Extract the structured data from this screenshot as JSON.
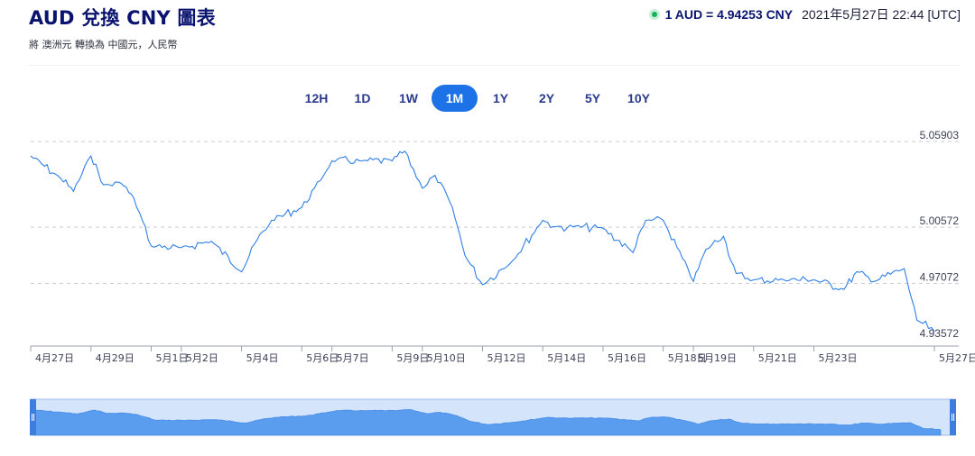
{
  "header": {
    "title": "AUD 兌換 CNY 圖表",
    "subtitle": "將 澳洲元 轉換為 中國元，人民幣",
    "rate": "1 AUD = 4.94253 CNY",
    "timestamp": "2021年5月27日 22:44 [UTC]"
  },
  "range_tabs": [
    {
      "label": "12H",
      "active": false
    },
    {
      "label": "1D",
      "active": false
    },
    {
      "label": "1W",
      "active": false
    },
    {
      "label": "1M",
      "active": true
    },
    {
      "label": "1Y",
      "active": false
    },
    {
      "label": "2Y",
      "active": false
    },
    {
      "label": "5Y",
      "active": false
    },
    {
      "label": "10Y",
      "active": false
    }
  ],
  "colors": {
    "line": "#2f7fe6",
    "navigator_fill": "#5a9cee",
    "navigator_bg": "#d4e4fa",
    "active_tab": "#1c72e6",
    "title": "#0a146e"
  },
  "chart_data": {
    "type": "line",
    "title": "AUD 兌換 CNY 圖表",
    "xlabel": "",
    "ylabel": "",
    "x_tick_labels": [
      "4月27日",
      "4月29日",
      "5月1日",
      "5月2日",
      "5月4日",
      "5月6日",
      "5月7日",
      "5月9日",
      "5月10日",
      "5月12日",
      "5月14日",
      "5月16日",
      "5月18日",
      "5月19日",
      "5月21日",
      "5月23日",
      "5月27日"
    ],
    "y_tick_labels": [
      "5.05903",
      "5.00572",
      "4.97072",
      "4.93572"
    ],
    "ylim": [
      4.93572,
      5.05903
    ],
    "grid": true,
    "series": [
      {
        "x": [
          "4月27日",
          "4月28日",
          "4月28日",
          "4月29日",
          "4月29日",
          "4月30日",
          "4月30日",
          "5月1日",
          "5月2日",
          "5月3日",
          "5月4日",
          "5月4日",
          "5月5日",
          "5月6日",
          "5月6日",
          "5月7日",
          "5月8日",
          "5月9日",
          "5月9日",
          "5月10日",
          "5月10日",
          "5月11日",
          "5月11日",
          "5月12日",
          "5月13日",
          "5月14日",
          "5月14日",
          "5月15日",
          "5月16日",
          "5月17日",
          "5月17日",
          "5月18日",
          "5月19日",
          "5月19日",
          "5月20日",
          "5月20日",
          "5月21日",
          "5月22日",
          "5月23日",
          "5月24日",
          "5月24日",
          "5月25日",
          "5月26日",
          "5月26日",
          "5月27日"
        ],
        "y": [
          5.05,
          5.036,
          5.028,
          5.05,
          5.032,
          5.033,
          5.024,
          4.994,
          4.993,
          4.997,
          4.978,
          4.995,
          5.01,
          5.018,
          5.03,
          5.047,
          5.047,
          5.047,
          5.053,
          5.03,
          5.038,
          5.018,
          4.988,
          4.97,
          4.985,
          5.01,
          5.006,
          5.006,
          5.005,
          4.99,
          5.01,
          5.01,
          4.972,
          4.992,
          5.0,
          4.977,
          4.973,
          4.973,
          4.973,
          4.967,
          4.978,
          4.972,
          4.98,
          4.948,
          4.941
        ]
      }
    ]
  }
}
